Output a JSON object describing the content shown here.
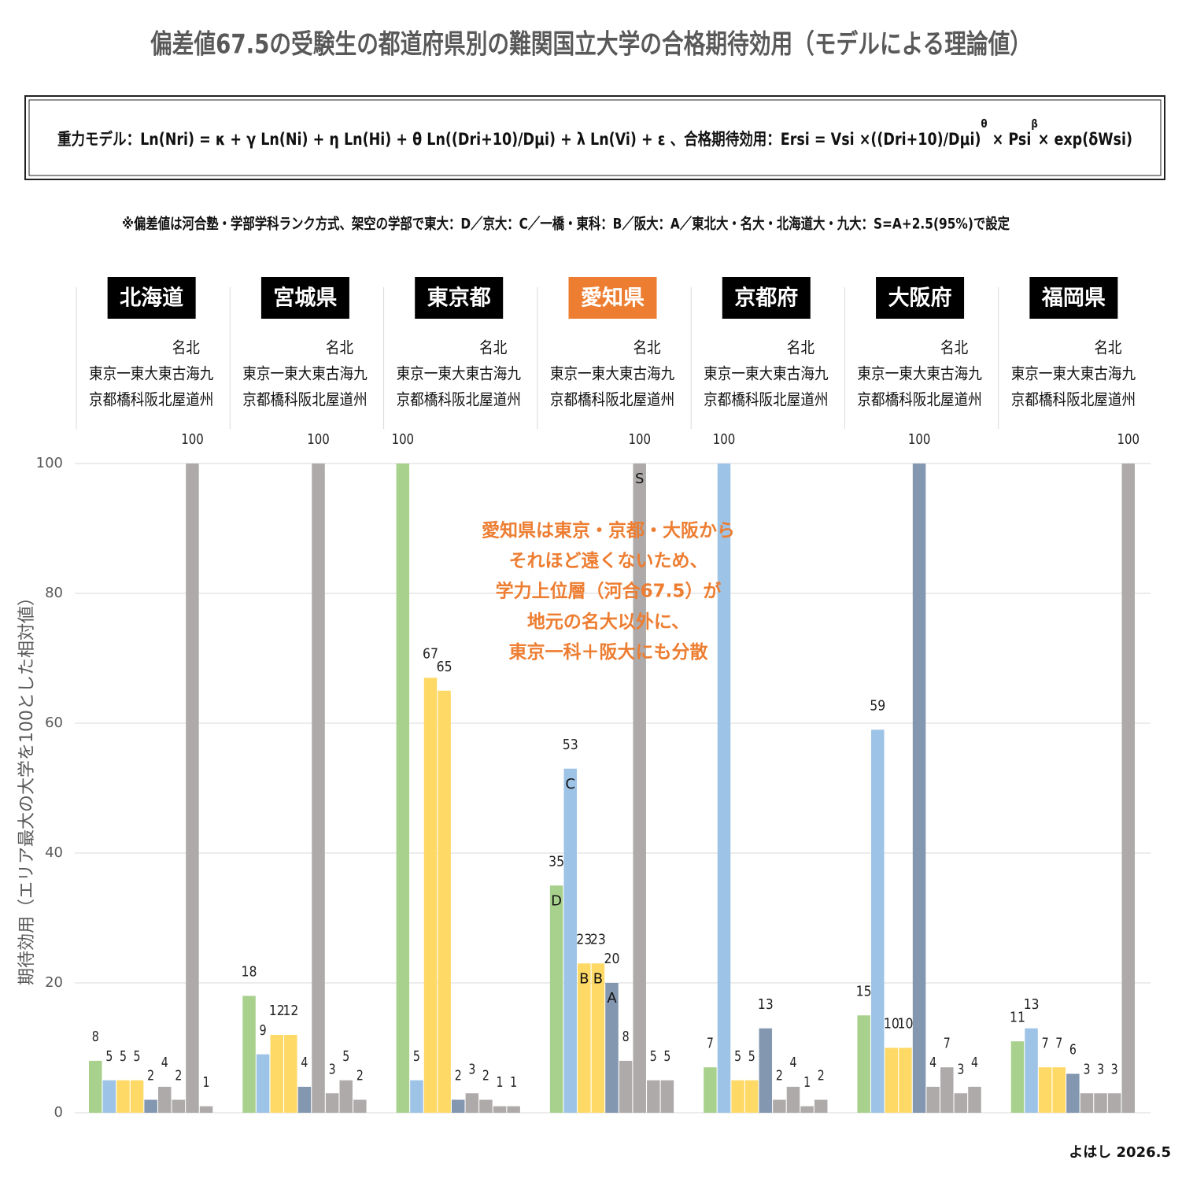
{
  "chart_data": {
    "type": "grouped-bar",
    "title": "偏差値67.5の受験生の都道府県別の難関国立大学の合格期待効用（モデルによる理論値）",
    "formula": [
      "重力モデル：Ln(Nri) = κ + γ Ln(Ni) + η Ln(Hi) + θ Ln((Dri+10)/Dμi) + λ Ln(Vi) + ε 、合格期待効用：Ersi = Vsi ×((Dri+10)/Dμi)",
      "θ",
      " × Psi",
      "β",
      "× exp(δWsi)"
    ],
    "note": "※偏差値は河合塾・学部学科ランク方式、架空の学部で東大：D／京大：C／一橋・東科：B／阪大：A／東北大・名大・北海道大・九大：S=A+2.5(95%)で設定",
    "university_header": [
      "名北",
      "東京一東大東古海九",
      "京都橋科阪北屋道州"
    ],
    "colors": [
      "#a9d18e",
      "#9dc3e6",
      "#ffd966",
      "#ffd966",
      "#8497b0",
      "#aeaaaa",
      "#aeaaaa",
      "#aeaaaa",
      "#aeaaaa"
    ],
    "highlight_color": "#ed7d31",
    "groups": [
      {
        "name": "北海道",
        "values": [
          8,
          5,
          5,
          5,
          2,
          4,
          2,
          100,
          1
        ]
      },
      {
        "name": "宮城県",
        "values": [
          18,
          9,
          12,
          12,
          4,
          100,
          3,
          5,
          2
        ]
      },
      {
        "name": "東京都",
        "values": [
          100,
          5,
          67,
          65,
          2,
          3,
          2,
          1,
          1
        ]
      },
      {
        "name": "愛知県",
        "highlight": true,
        "values": [
          35,
          53,
          23,
          23,
          20,
          8,
          100,
          5,
          5
        ],
        "grades": [
          "D",
          "C",
          "B",
          "B",
          "A",
          null,
          "S",
          null,
          null
        ]
      },
      {
        "name": "京都府",
        "values": [
          7,
          100,
          5,
          5,
          13,
          2,
          4,
          1,
          2
        ]
      },
      {
        "name": "大阪府",
        "values": [
          15,
          59,
          10,
          10,
          100,
          4,
          7,
          3,
          4
        ]
      },
      {
        "name": "福岡県",
        "values": [
          11,
          13,
          7,
          7,
          6,
          3,
          3,
          3,
          100
        ]
      }
    ],
    "ylabel": "期待効用（エリア最大の大学を100とした相対値）",
    "ylim": [
      0,
      100
    ],
    "yticks": [
      0,
      20,
      40,
      60,
      80,
      100
    ],
    "grid": true,
    "annotation": [
      "愛知県は東京・京都・大阪から",
      "それほど遠くないため、",
      "学力上位層（河合67.5）が",
      "地元の名大以外に、",
      "東京一科＋阪大にも分散"
    ],
    "credit": "よはし 2026.5"
  }
}
